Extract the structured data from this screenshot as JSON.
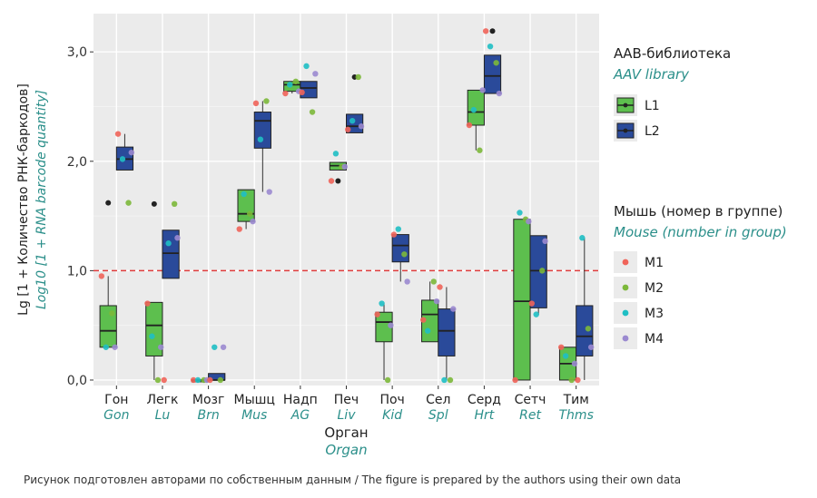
{
  "chart_data": {
    "type": "boxplot",
    "ylabel_ru": "Lg [1 + Количество РНК-баркодов]",
    "ylabel_en": "Log10 [1 + RNA barcode quantity]",
    "xlabel_ru": "Орган",
    "xlabel_en": "Organ",
    "ylim": [
      -0.05,
      3.35
    ],
    "yticks": [
      0.0,
      1.0,
      2.0,
      3.0
    ],
    "ytick_labels": [
      "0,0",
      "1,0",
      "2,0",
      "3,0"
    ],
    "threshold": 1.0,
    "threshold_color": "#e03c3c",
    "grid": true,
    "categories": [
      {
        "ru": "Гон",
        "en": "Gon"
      },
      {
        "ru": "Легк",
        "en": "Lu"
      },
      {
        "ru": "Мозг",
        "en": "Brn"
      },
      {
        "ru": "Мышц",
        "en": "Mus"
      },
      {
        "ru": "Надп",
        "en": "AG"
      },
      {
        "ru": "Печ",
        "en": "Liv"
      },
      {
        "ru": "Поч",
        "en": "Kid"
      },
      {
        "ru": "Сел",
        "en": "Spl"
      },
      {
        "ru": "Серд",
        "en": "Hrt"
      },
      {
        "ru": "Сетч",
        "en": "Ret"
      },
      {
        "ru": "Тим",
        "en": "Thms"
      }
    ],
    "series": [
      {
        "name": "L1",
        "color": "#5dbf4e",
        "boxes": [
          {
            "min": 0.3,
            "q1": 0.3,
            "median": 0.45,
            "q3": 0.68,
            "max": 0.95,
            "outliers": [
              1.62
            ]
          },
          {
            "min": 0.0,
            "q1": 0.22,
            "median": 0.5,
            "q3": 0.71,
            "max": 0.71,
            "outliers": [
              1.61
            ]
          },
          {
            "min": 0.0,
            "q1": 0.0,
            "median": 0.0,
            "q3": 0.0,
            "max": 0.0,
            "outliers": []
          },
          {
            "min": 1.38,
            "q1": 1.45,
            "median": 1.52,
            "q3": 1.74,
            "max": 1.74,
            "outliers": []
          },
          {
            "min": 2.62,
            "q1": 2.64,
            "median": 2.7,
            "q3": 2.73,
            "max": 2.73,
            "outliers": []
          },
          {
            "min": 1.92,
            "q1": 1.92,
            "median": 1.96,
            "q3": 1.99,
            "max": 1.99,
            "outliers": [
              1.82
            ]
          },
          {
            "min": 0.0,
            "q1": 0.35,
            "median": 0.53,
            "q3": 0.62,
            "max": 0.7,
            "outliers": []
          },
          {
            "min": 0.35,
            "q1": 0.35,
            "median": 0.6,
            "q3": 0.73,
            "max": 0.9,
            "outliers": []
          },
          {
            "min": 2.1,
            "q1": 2.33,
            "median": 2.45,
            "q3": 2.65,
            "max": 2.65,
            "outliers": []
          },
          {
            "min": 0.0,
            "q1": 0.0,
            "median": 0.72,
            "q3": 1.47,
            "max": 1.47,
            "outliers": []
          },
          {
            "min": 0.0,
            "q1": 0.0,
            "median": 0.15,
            "q3": 0.3,
            "max": 0.3,
            "outliers": []
          }
        ]
      },
      {
        "name": "L2",
        "color": "#2a4a9a",
        "boxes": [
          {
            "min": 1.92,
            "q1": 1.92,
            "median": 2.02,
            "q3": 2.13,
            "max": 2.25,
            "outliers": []
          },
          {
            "min": 0.93,
            "q1": 0.93,
            "median": 1.16,
            "q3": 1.37,
            "max": 1.37,
            "outliers": []
          },
          {
            "min": 0.0,
            "q1": 0.0,
            "median": 0.0,
            "q3": 0.06,
            "max": 0.06,
            "outliers": []
          },
          {
            "min": 1.72,
            "q1": 2.12,
            "median": 2.37,
            "q3": 2.45,
            "max": 2.55,
            "outliers": []
          },
          {
            "min": 2.58,
            "q1": 2.58,
            "median": 2.67,
            "q3": 2.73,
            "max": 2.73,
            "outliers": []
          },
          {
            "min": 2.26,
            "q1": 2.26,
            "median": 2.32,
            "q3": 2.43,
            "max": 2.43,
            "outliers": [
              2.77
            ]
          },
          {
            "min": 0.9,
            "q1": 1.08,
            "median": 1.23,
            "q3": 1.33,
            "max": 1.33,
            "outliers": []
          },
          {
            "min": 0.0,
            "q1": 0.22,
            "median": 0.45,
            "q3": 0.65,
            "max": 0.85,
            "outliers": []
          },
          {
            "min": 2.62,
            "q1": 2.62,
            "median": 2.78,
            "q3": 2.97,
            "max": 2.97,
            "outliers": [
              3.19
            ]
          },
          {
            "min": 0.6,
            "q1": 0.66,
            "median": 1.0,
            "q3": 1.32,
            "max": 1.32,
            "outliers": []
          },
          {
            "min": 0.0,
            "q1": 0.22,
            "median": 0.4,
            "q3": 0.68,
            "max": 1.3,
            "outliers": []
          }
        ]
      }
    ],
    "mouse_points": [
      [
        [
          [
            0.95,
            0.61,
            0.3,
            0.3
          ],
          [
            2.25,
            1.62,
            2.02,
            2.08
          ]
        ],
        [
          [
            0.7,
            0.0,
            0.4,
            0.3
          ],
          [
            0.0,
            1.61,
            1.25,
            1.3
          ]
        ],
        [
          [
            0.0,
            0.0,
            0.0,
            0.0
          ],
          [
            0.0,
            0.0,
            0.3,
            0.3
          ]
        ],
        [
          [
            1.38,
            1.52,
            1.7,
            1.45
          ],
          [
            2.53,
            2.55,
            2.2,
            1.72
          ]
        ],
        [
          [
            2.62,
            2.73,
            2.7,
            2.64
          ],
          [
            2.63,
            2.45,
            2.87,
            2.8
          ]
        ],
        [
          [
            1.82,
            1.95,
            2.07,
            1.95
          ],
          [
            2.29,
            2.77,
            2.37,
            2.32
          ]
        ],
        [
          [
            0.6,
            0.0,
            0.7,
            0.5
          ],
          [
            1.33,
            1.15,
            1.38,
            0.9
          ]
        ],
        [
          [
            0.55,
            0.9,
            0.45,
            0.72
          ],
          [
            0.85,
            0.0,
            0.0,
            0.65
          ]
        ],
        [
          [
            2.33,
            2.1,
            2.47,
            2.65
          ],
          [
            3.19,
            2.9,
            3.05,
            2.62
          ]
        ],
        [
          [
            0.0,
            1.47,
            1.53,
            1.45
          ],
          [
            0.7,
            1.0,
            0.6,
            1.27
          ]
        ],
        [
          [
            0.3,
            0.0,
            0.22,
            0.15
          ],
          [
            0.0,
            0.47,
            1.3,
            0.3
          ]
        ]
      ]
    ],
    "legend1": {
      "title_ru": "ААВ-библиотека",
      "title_en": "AAV library",
      "items": [
        "L1",
        "L2"
      ]
    },
    "legend2": {
      "title_ru": "Мышь (номер в группе)",
      "title_en": "Mouse (number in group)",
      "items": [
        {
          "label": "M1",
          "color": "#f0645a"
        },
        {
          "label": "M2",
          "color": "#7cb83a"
        },
        {
          "label": "M3",
          "color": "#1fbfc4"
        },
        {
          "label": "M4",
          "color": "#9b8ad0"
        }
      ]
    },
    "colors": {
      "panel": "#ebebeb",
      "grid_major": "#ffffff",
      "teal_text": "#2b8f8a"
    }
  },
  "caption": "Рисунок подготовлен авторами по собственным данным / The figure is prepared by the authors using their own data"
}
